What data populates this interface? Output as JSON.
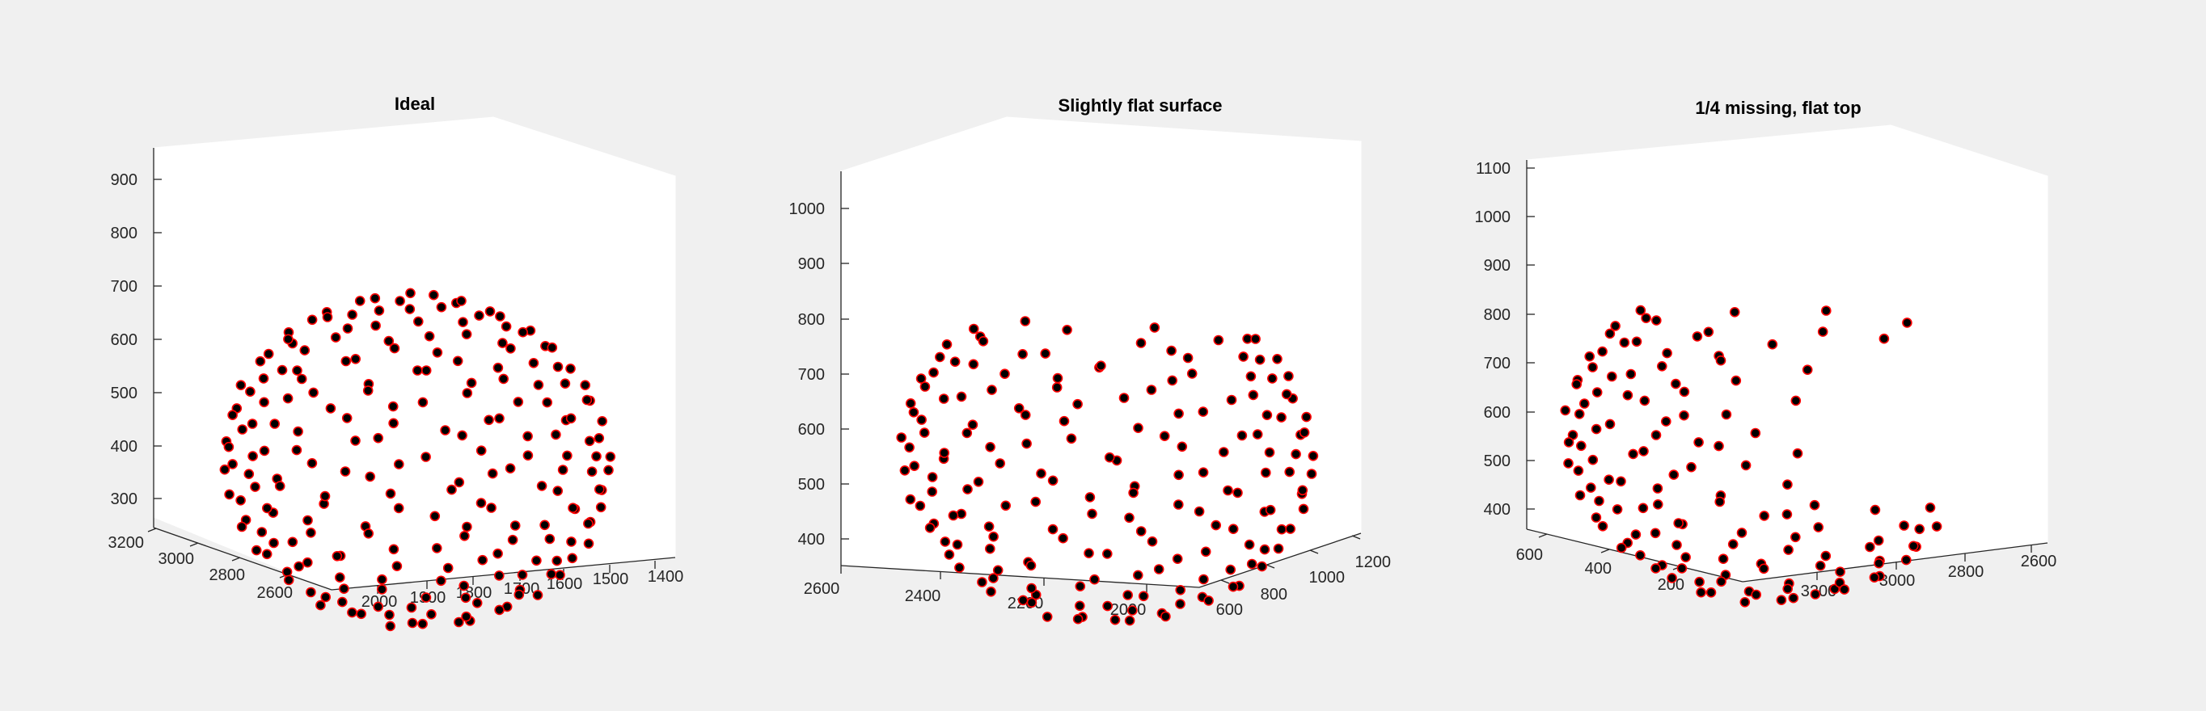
{
  "colors": {
    "background": "#f0f0f0",
    "pane": "#ffffff",
    "marker_fill": "#000000",
    "marker_edge": "#ff0000"
  },
  "chart_data": [
    {
      "type": "scatter",
      "title": "Ideal",
      "z_ticks": [
        "300",
        "400",
        "500",
        "600",
        "700",
        "800",
        "900"
      ],
      "y_ticks": [
        "2600",
        "2800",
        "3000",
        "3200"
      ],
      "x_ticks": [
        "2000",
        "1900",
        "1800",
        "1700",
        "1600",
        "1500",
        "1400"
      ],
      "zlim": [
        240,
        960
      ],
      "grid": false,
      "point_count": 210,
      "description_of_points": "points evenly scattered over a full sphere"
    },
    {
      "type": "scatter",
      "title": "Slightly flat surface",
      "z_ticks": [
        "400",
        "500",
        "600",
        "700",
        "800",
        "900",
        "1000"
      ],
      "x_ticks": [
        "2600",
        "2400",
        "2200",
        "2000"
      ],
      "y_ticks": [
        "600",
        "800",
        "1000",
        "1200"
      ],
      "zlim": [
        360,
        1060
      ],
      "grid": false,
      "point_count": 200,
      "description_of_points": "points over a sphere with a flattened top"
    },
    {
      "type": "scatter",
      "title": "1/4 missing, flat top",
      "z_ticks": [
        "400",
        "500",
        "600",
        "700",
        "800",
        "900",
        "1000",
        "1100"
      ],
      "y_ticks": [
        "200",
        "400",
        "600"
      ],
      "x_ticks": [
        "3200",
        "3000",
        "2800",
        "2600"
      ],
      "zlim": [
        370,
        1130
      ],
      "grid": false,
      "point_count": 160,
      "description_of_points": "sphere with one quarter missing and flat top"
    }
  ]
}
